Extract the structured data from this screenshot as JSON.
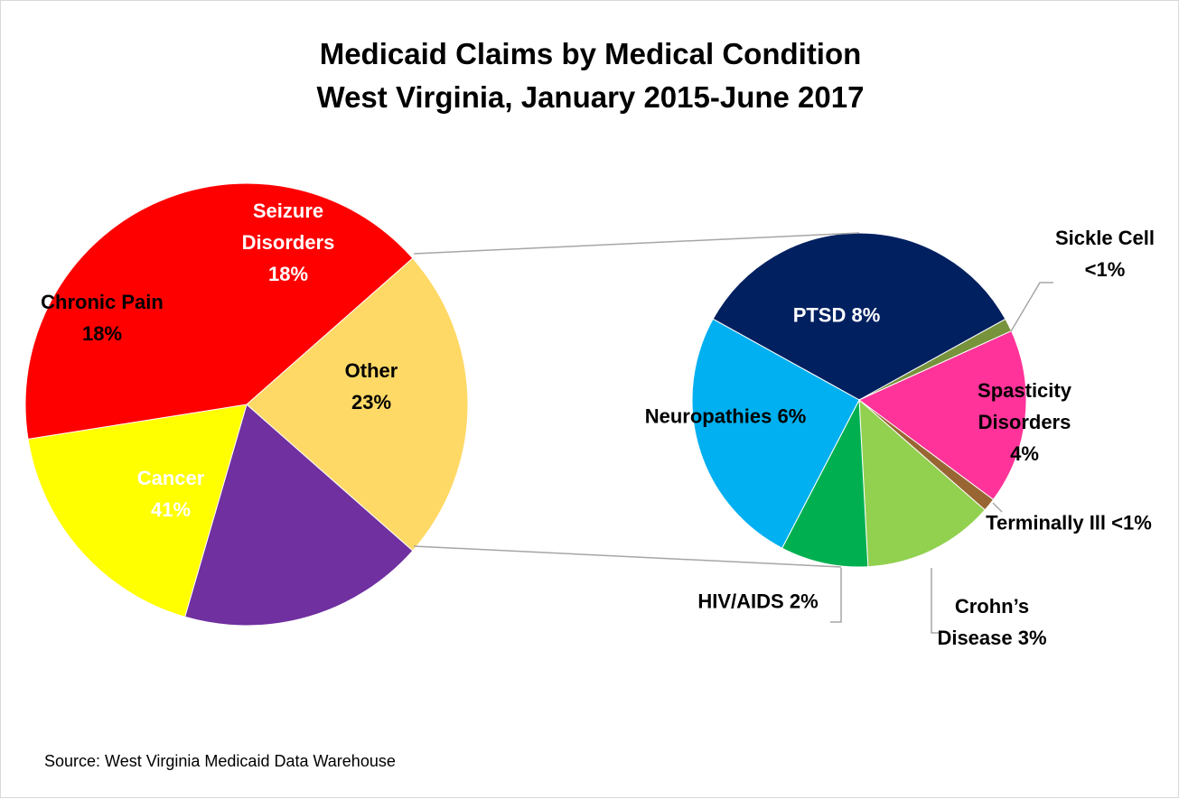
{
  "chart_data": [
    {
      "type": "pie",
      "title": "Medicaid Claims by Medical Condition",
      "subtitle": "West Virginia, January 2015-June 2017",
      "source": "Source: West Virginia Medicaid Data Warehouse",
      "categories": [
        "Other",
        "Seizure Disorders",
        "Chronic Pain",
        "Cancer"
      ],
      "values": [
        23,
        18,
        18,
        41
      ],
      "value_labels": [
        "23%",
        "18%",
        "18%",
        "41%"
      ],
      "colors": [
        "#ffd966",
        "#7030a0",
        "#ffff00",
        "#ff0000"
      ]
    },
    {
      "type": "pie",
      "categories": [
        "PTSD",
        "Sickle Cell",
        "Spasticity Disorders",
        "Terminally Ill",
        "Crohn’s Disease",
        "HIV/AIDS",
        "Neuropathies"
      ],
      "values": [
        8,
        0.3,
        4,
        0.3,
        3,
        2,
        6
      ],
      "value_labels": [
        "8%",
        "<1%",
        "4%",
        "<1%",
        "3%",
        "2%",
        "6%"
      ],
      "colors": [
        "#002060",
        "#77933c",
        "#ff3399",
        "#996633",
        "#92d050",
        "#00b050",
        "#00b0f0"
      ]
    }
  ]
}
